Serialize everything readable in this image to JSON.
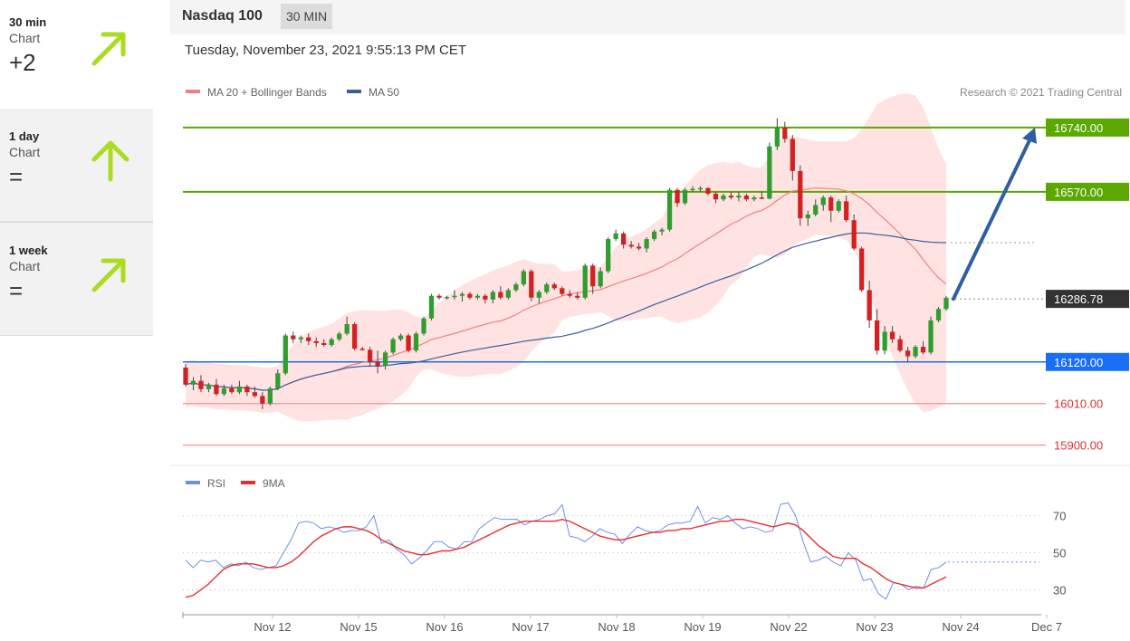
{
  "sidebar": {
    "items": [
      {
        "period": "30 min",
        "type": "Chart",
        "value": "+2",
        "direction": "up-right",
        "icon": "arrow-up-right-icon",
        "color": "#aadd22"
      },
      {
        "period": "1 day",
        "type": "Chart",
        "value": "=",
        "direction": "up",
        "icon": "arrow-up-icon",
        "color": "#aadd22"
      },
      {
        "period": "1 week",
        "type": "Chart",
        "value": "=",
        "direction": "up-right",
        "icon": "arrow-up-right-icon",
        "color": "#aadd22"
      }
    ]
  },
  "header": {
    "title": "Nasdaq 100",
    "timeframe": "30 MIN",
    "timestamp": "Tuesday, November 23, 2021 9:55:13 PM CET"
  },
  "chart_data": [
    {
      "type": "candlestick",
      "title": "Nasdaq 100",
      "legend": [
        {
          "name": "MA 20 + Bollinger Bands",
          "color": "#f08080"
        },
        {
          "name": "MA 50",
          "color": "#3a5f9f"
        }
      ],
      "credit": "Research © 2021 Trading Central",
      "x_labels": [
        "Nov 12",
        "Nov 15",
        "Nov 16",
        "Nov 17",
        "Nov 18",
        "Nov 19",
        "Nov 22",
        "Nov 23",
        "Nov 24",
        "Dec 7"
      ],
      "ylim": [
        15880,
        16790
      ],
      "last_price": 16286.78,
      "levels": [
        {
          "value": 16740.0,
          "label": "16740.00",
          "color": "#5aa800",
          "style": "resistance"
        },
        {
          "value": 16570.0,
          "label": "16570.00",
          "color": "#5aa800",
          "style": "resistance"
        },
        {
          "value": 16286.78,
          "label": "16286.78",
          "color": "#333333",
          "style": "last"
        },
        {
          "value": 16120.0,
          "label": "16120.00",
          "color": "#1a6ef5",
          "style": "pivot"
        },
        {
          "value": 16010.0,
          "label": "16010.00",
          "color": "#e03030",
          "style": "support"
        },
        {
          "value": 15900.0,
          "label": "15900.00",
          "color": "#e03030",
          "style": "support"
        }
      ],
      "target": {
        "from": 16286.78,
        "to": 16740.0
      },
      "candles": [
        [
          16105,
          16115,
          16055,
          16060
        ],
        [
          16060,
          16080,
          16045,
          16070
        ],
        [
          16070,
          16085,
          16040,
          16048
        ],
        [
          16048,
          16065,
          16040,
          16060
        ],
        [
          16060,
          16075,
          16030,
          16035
        ],
        [
          16035,
          16060,
          16030,
          16050
        ],
        [
          16050,
          16060,
          16035,
          16040
        ],
        [
          16040,
          16070,
          16035,
          16055
        ],
        [
          16055,
          16060,
          16030,
          16040
        ],
        [
          16040,
          16055,
          16025,
          16030
        ],
        [
          16030,
          16040,
          15995,
          16010
        ],
        [
          16010,
          16055,
          16005,
          16050
        ],
        [
          16050,
          16100,
          16045,
          16090
        ],
        [
          16090,
          16195,
          16085,
          16190
        ],
        [
          16190,
          16200,
          16170,
          16180
        ],
        [
          16180,
          16190,
          16170,
          16185
        ],
        [
          16185,
          16195,
          16165,
          16175
        ],
        [
          16175,
          16185,
          16160,
          16170
        ],
        [
          16170,
          16180,
          16160,
          16165
        ],
        [
          16165,
          16185,
          16160,
          16180
        ],
        [
          16180,
          16200,
          16175,
          16195
        ],
        [
          16195,
          16240,
          16190,
          16220
        ],
        [
          16220,
          16225,
          16150,
          16155
        ],
        [
          16155,
          16160,
          16150,
          16152
        ],
        [
          16152,
          16160,
          16110,
          16120
        ],
        [
          16120,
          16150,
          16090,
          16110
        ],
        [
          16110,
          16150,
          16100,
          16145
        ],
        [
          16145,
          16185,
          16140,
          16180
        ],
        [
          16180,
          16195,
          16175,
          16190
        ],
        [
          16190,
          16195,
          16145,
          16150
        ],
        [
          16150,
          16200,
          16145,
          16195
        ],
        [
          16195,
          16240,
          16190,
          16235
        ],
        [
          16235,
          16300,
          16230,
          16295
        ],
        [
          16295,
          16300,
          16285,
          16290
        ],
        [
          16290,
          16295,
          16285,
          16292
        ],
        [
          16292,
          16310,
          16285,
          16295
        ],
        [
          16295,
          16305,
          16280,
          16300
        ],
        [
          16300,
          16305,
          16285,
          16290
        ],
        [
          16290,
          16300,
          16285,
          16295
        ],
        [
          16295,
          16300,
          16275,
          16285
        ],
        [
          16285,
          16310,
          16275,
          16305
        ],
        [
          16305,
          16320,
          16285,
          16290
        ],
        [
          16290,
          16315,
          16285,
          16310
        ],
        [
          16310,
          16330,
          16305,
          16325
        ],
        [
          16325,
          16365,
          16320,
          16360
        ],
        [
          16360,
          16365,
          16280,
          16290
        ],
        [
          16290,
          16310,
          16275,
          16305
        ],
        [
          16305,
          16330,
          16300,
          16325
        ],
        [
          16325,
          16330,
          16310,
          16315
        ],
        [
          16315,
          16320,
          16295,
          16300
        ],
        [
          16300,
          16310,
          16290,
          16295
        ],
        [
          16295,
          16305,
          16285,
          16290
        ],
        [
          16290,
          16380,
          16285,
          16375
        ],
        [
          16375,
          16380,
          16300,
          16320
        ],
        [
          16320,
          16370,
          16315,
          16360
        ],
        [
          16360,
          16450,
          16355,
          16445
        ],
        [
          16445,
          16470,
          16440,
          16460
        ],
        [
          16460,
          16465,
          16420,
          16430
        ],
        [
          16430,
          16440,
          16420,
          16425
        ],
        [
          16425,
          16435,
          16415,
          16420
        ],
        [
          16420,
          16450,
          16410,
          16445
        ],
        [
          16445,
          16470,
          16440,
          16465
        ],
        [
          16465,
          16475,
          16455,
          16470
        ],
        [
          16470,
          16580,
          16465,
          16575
        ],
        [
          16575,
          16580,
          16530,
          16540
        ],
        [
          16540,
          16580,
          16535,
          16575
        ],
        [
          16575,
          16585,
          16570,
          16578
        ],
        [
          16578,
          16585,
          16570,
          16580
        ],
        [
          16580,
          16582,
          16560,
          16565
        ],
        [
          16565,
          16570,
          16540,
          16550
        ],
        [
          16550,
          16565,
          16545,
          16560
        ],
        [
          16560,
          16570,
          16550,
          16555
        ],
        [
          16555,
          16570,
          16545,
          16560
        ],
        [
          16560,
          16565,
          16545,
          16550
        ],
        [
          16550,
          16560,
          16545,
          16555
        ],
        [
          16555,
          16570,
          16550,
          16552
        ],
        [
          16552,
          16700,
          16550,
          16690
        ],
        [
          16690,
          16765,
          16680,
          16740
        ],
        [
          16740,
          16755,
          16700,
          16710
        ],
        [
          16710,
          16720,
          16600,
          16625
        ],
        [
          16625,
          16640,
          16480,
          16500
        ],
        [
          16500,
          16520,
          16480,
          16510
        ],
        [
          16510,
          16550,
          16505,
          16535
        ],
        [
          16535,
          16560,
          16520,
          16555
        ],
        [
          16555,
          16560,
          16490,
          16520
        ],
        [
          16520,
          16550,
          16515,
          16545
        ],
        [
          16545,
          16560,
          16490,
          16495
        ],
        [
          16495,
          16510,
          16415,
          16420
        ],
        [
          16420,
          16425,
          16305,
          16310
        ],
        [
          16310,
          16335,
          16210,
          16230
        ],
        [
          16230,
          16260,
          16140,
          16150
        ],
        [
          16150,
          16215,
          16140,
          16200
        ],
        [
          16200,
          16215,
          16170,
          16180
        ],
        [
          16180,
          16190,
          16145,
          16150
        ],
        [
          16150,
          16160,
          16120,
          16135
        ],
        [
          16135,
          16165,
          16130,
          16160
        ],
        [
          16160,
          16175,
          16140,
          16145
        ],
        [
          16145,
          16240,
          16140,
          16230
        ],
        [
          16230,
          16265,
          16225,
          16260
        ],
        [
          16260,
          16295,
          16255,
          16290
        ]
      ]
    },
    {
      "type": "line",
      "legend": [
        {
          "name": "RSI",
          "color": "#6f8fe6"
        },
        {
          "name": "9MA",
          "color": "#e53030"
        }
      ],
      "ylim": [
        20,
        82
      ],
      "yticks": [
        30,
        50,
        70
      ],
      "series": [
        {
          "name": "RSI",
          "values": [
            46,
            42,
            46,
            45,
            46,
            42,
            44,
            43,
            45,
            42,
            41,
            42,
            43,
            50,
            57,
            66,
            67,
            66,
            63,
            64,
            63,
            61,
            62,
            62,
            64,
            70,
            55,
            57,
            52,
            49,
            44,
            47,
            51,
            56,
            56,
            53,
            52,
            56,
            56,
            63,
            66,
            69,
            68,
            68,
            68,
            65,
            67,
            68,
            70,
            71,
            76,
            59,
            58,
            56,
            59,
            63,
            61,
            60,
            55,
            60,
            64,
            62,
            61,
            62,
            65,
            66,
            66,
            67,
            75,
            66,
            69,
            68,
            70,
            66,
            63,
            64,
            63,
            61,
            62,
            76,
            77,
            70,
            56,
            45,
            46,
            48,
            45,
            43,
            50,
            46,
            35,
            36,
            28,
            25,
            34,
            33,
            30,
            32,
            31,
            41,
            42,
            45
          ]
        },
        {
          "name": "9MA",
          "values": [
            26,
            27,
            30,
            33,
            37,
            41,
            43,
            44,
            44,
            44,
            43,
            42,
            42,
            43,
            45,
            48,
            52,
            56,
            59,
            61,
            63,
            64,
            64,
            63,
            62,
            60,
            57,
            55,
            53,
            51,
            50,
            49,
            49,
            50,
            51,
            51,
            52,
            53,
            55,
            57,
            59,
            61,
            63,
            65,
            66,
            67,
            67,
            67,
            67,
            67,
            68,
            67,
            65,
            63,
            61,
            59,
            58,
            57,
            57,
            58,
            59,
            60,
            61,
            61,
            62,
            62,
            63,
            63,
            64,
            65,
            66,
            67,
            67,
            68,
            68,
            67,
            66,
            65,
            64,
            65,
            66,
            65,
            62,
            58,
            54,
            51,
            48,
            47,
            47,
            47,
            44,
            42,
            39,
            36,
            34,
            33,
            32,
            31,
            31,
            33,
            35,
            37
          ]
        }
      ]
    }
  ]
}
